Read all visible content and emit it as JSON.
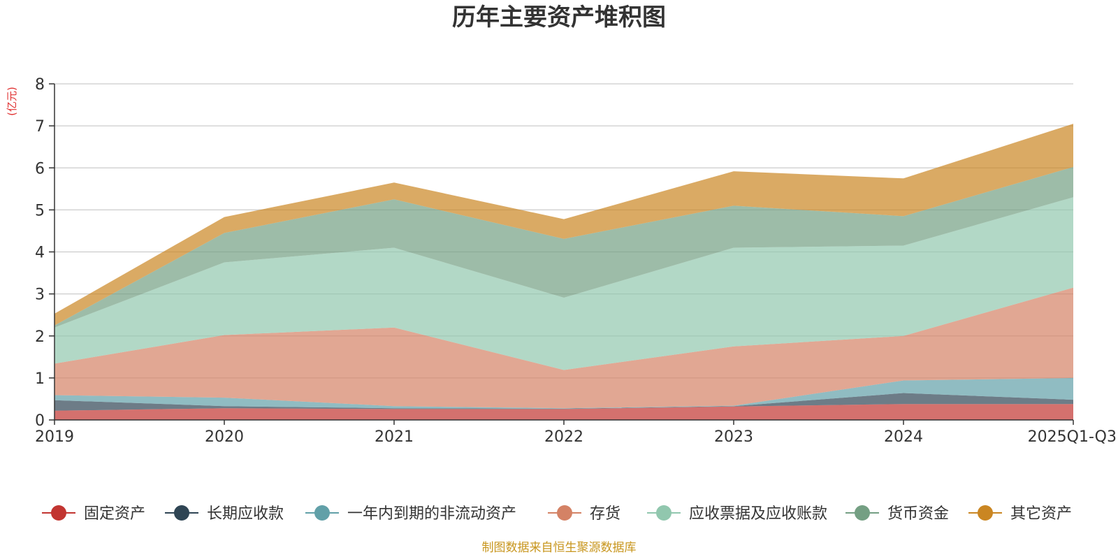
{
  "chart_data": {
    "type": "area",
    "stacked": true,
    "title": "历年主要资产堆积图",
    "ylabel": "(亿元)",
    "xlabel": "",
    "ylim": [
      0,
      8
    ],
    "yticks": [
      "0",
      "1",
      "2",
      "3",
      "4",
      "5",
      "6",
      "7",
      "8"
    ],
    "categories": [
      "2019",
      "2020",
      "2021",
      "2022",
      "2023",
      "2024",
      "2025Q1-Q3"
    ],
    "grid": true,
    "legend_position": "bottom",
    "series": [
      {
        "name": "固定资产",
        "color": "#c23531",
        "values": [
          0.22,
          0.28,
          0.26,
          0.26,
          0.32,
          0.38,
          0.38
        ]
      },
      {
        "name": "长期应收款",
        "color": "#2f4554",
        "values": [
          0.25,
          0.05,
          0.02,
          0.01,
          0.01,
          0.26,
          0.1
        ]
      },
      {
        "name": "一年内到期的非流动资产",
        "color": "#61a0a8",
        "values": [
          0.12,
          0.2,
          0.05,
          0.01,
          0.01,
          0.3,
          0.52
        ]
      },
      {
        "name": "存货",
        "color": "#d48265",
        "values": [
          0.75,
          1.49,
          1.87,
          0.91,
          1.41,
          1.06,
          2.15
        ]
      },
      {
        "name": "应收票据及应收账款",
        "color": "#91c7ae",
        "values": [
          0.86,
          1.73,
          1.9,
          1.72,
          2.35,
          2.15,
          2.15
        ]
      },
      {
        "name": "货币资金",
        "color": "#749f83",
        "values": [
          0.05,
          0.7,
          1.15,
          1.4,
          1.0,
          0.7,
          0.72
        ]
      },
      {
        "name": "其它资产",
        "color": "#ca8622",
        "values": [
          0.28,
          0.38,
          0.4,
          0.47,
          0.82,
          0.9,
          1.03
        ]
      }
    ],
    "source_note": "制图数据来自恒生聚源数据库"
  }
}
